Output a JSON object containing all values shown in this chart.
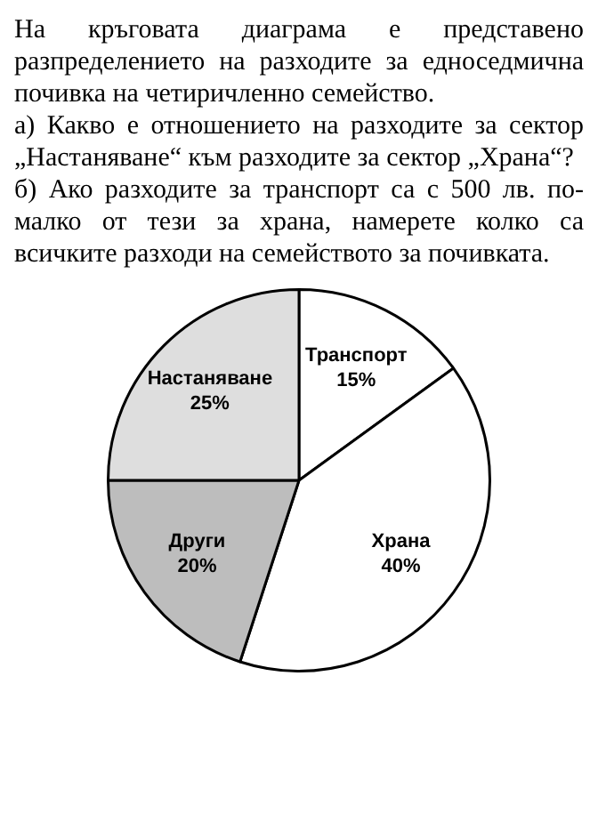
{
  "chart_data": {
    "type": "pie",
    "title": "На кръговата диаграма е представено разпределението на разходите за едноседмична почивка на четиричленно семейство.",
    "annotations": [
      "а) Какво е отношението на разходите за сектор „Настаняване“ към разходите за сектор „Храна“?",
      "б) Ако разходите за транспорт са с 500 лв. по-малко от тези за храна, намерете колко са всичките разходи на семейството за почивката."
    ],
    "categories": [
      "Транспорт",
      "Храна",
      "Други",
      "Настаняване"
    ],
    "values": [
      15,
      40,
      20,
      25
    ],
    "colors": [
      "#ffffff",
      "#ffffff",
      "#bdbdbd",
      "#dedede"
    ],
    "value_labels": [
      "15%",
      "40%",
      "20%",
      "25%"
    ],
    "legend": false
  }
}
